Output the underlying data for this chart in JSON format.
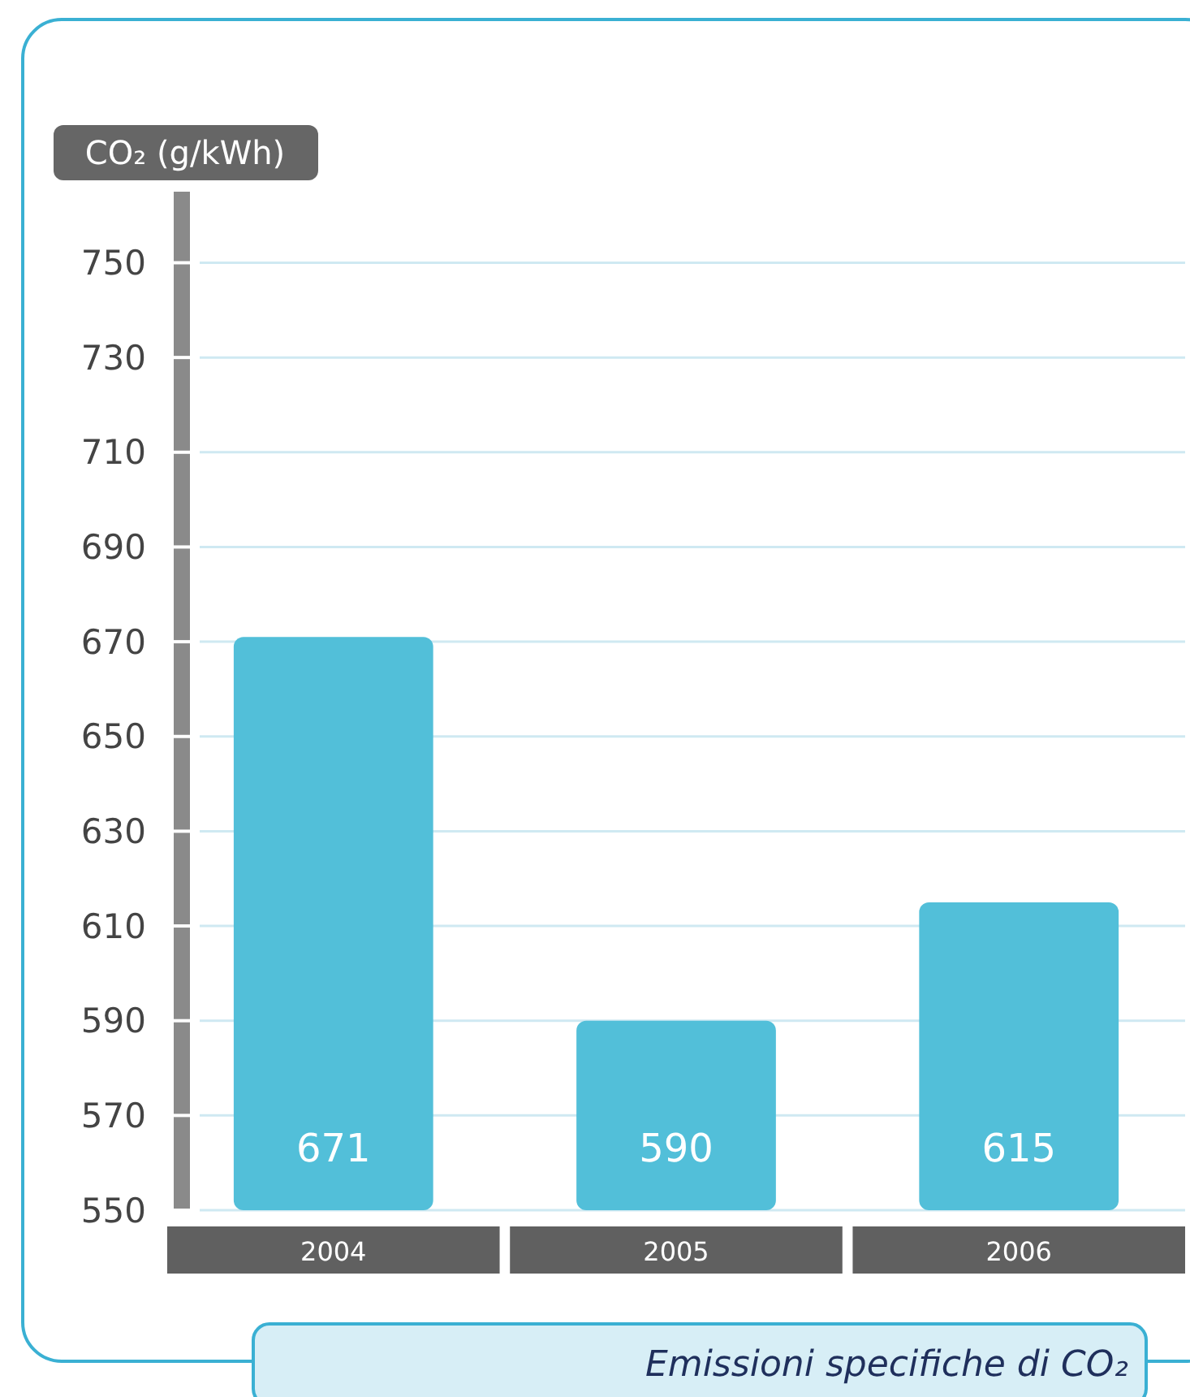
{
  "chart_data": {
    "type": "bar",
    "title": "Emissioni specifiche di CO₂",
    "ylabel": "CO₂ (g/kWh)",
    "categories": [
      "2004",
      "2005",
      "2006"
    ],
    "values": [
      671,
      590,
      615
    ],
    "color": "#52bfd9",
    "ylim": [
      550,
      765
    ],
    "yticks": [
      550,
      570,
      590,
      610,
      630,
      650,
      670,
      690,
      710,
      730,
      750
    ],
    "grid": "y",
    "data_labels": true
  }
}
